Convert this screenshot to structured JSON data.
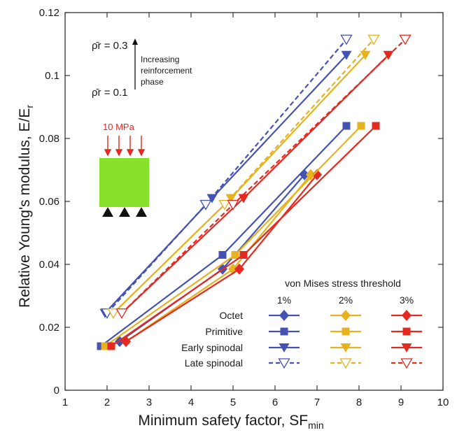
{
  "chart_data": {
    "type": "line",
    "xlabel": "Minimum safety factor, SF",
    "xlabel_sub": "min",
    "ylabel": "Relative Young's modulus, E/E",
    "ylabel_sub": "r",
    "xlim": [
      1,
      10
    ],
    "ylim": [
      0,
      0.12
    ],
    "xticks": [
      1,
      2,
      3,
      4,
      5,
      6,
      7,
      8,
      9,
      10
    ],
    "yticks": [
      0,
      0.02,
      0.04,
      0.06,
      0.08,
      0.1,
      0.12
    ],
    "grid": false,
    "legend": {
      "title": "von Mises stress threshold",
      "columns": [
        "1%",
        "2%",
        "3%"
      ],
      "rows": [
        "Octet",
        "Primitive",
        "Early spinodal",
        "Late spinodal"
      ],
      "placement": "bottom-right"
    },
    "colors": {
      "1%": "#4452b4",
      "2%": "#e6b21e",
      "3%": "#e42a20"
    },
    "annotations": {
      "rho_top": "ρ̄r = 0.3",
      "rho_bottom": "ρ̄r = 0.1",
      "arrow_label_line1": "Increasing",
      "arrow_label_line2": "reinforcement",
      "arrow_label_line3": "phase",
      "load_label": "10 MPa"
    },
    "series": [
      {
        "topology": "Octet",
        "threshold": "1%",
        "marker": "diamond",
        "dashed": false,
        "x": [
          2.3,
          4.75,
          6.7
        ],
        "y": [
          0.0155,
          0.0385,
          0.0685
        ]
      },
      {
        "topology": "Octet",
        "threshold": "2%",
        "marker": "diamond",
        "dashed": false,
        "x": [
          2.45,
          5.0,
          6.85
        ],
        "y": [
          0.0155,
          0.0385,
          0.0685
        ]
      },
      {
        "topology": "Octet",
        "threshold": "3%",
        "marker": "diamond",
        "dashed": false,
        "x": [
          2.45,
          5.15,
          7.0
        ],
        "y": [
          0.0155,
          0.0385,
          0.0685
        ]
      },
      {
        "topology": "Primitive",
        "threshold": "1%",
        "marker": "square",
        "dashed": false,
        "x": [
          1.85,
          4.75,
          7.7
        ],
        "y": [
          0.014,
          0.043,
          0.084
        ]
      },
      {
        "topology": "Primitive",
        "threshold": "2%",
        "marker": "square",
        "dashed": false,
        "x": [
          1.95,
          5.05,
          8.05
        ],
        "y": [
          0.014,
          0.043,
          0.084
        ]
      },
      {
        "topology": "Primitive",
        "threshold": "3%",
        "marker": "square",
        "dashed": false,
        "x": [
          2.1,
          5.25,
          8.4
        ],
        "y": [
          0.014,
          0.043,
          0.084
        ]
      },
      {
        "topology": "Early spinodal",
        "threshold": "1%",
        "marker": "triangle-down",
        "dashed": false,
        "x": [
          1.95,
          4.5,
          7.7
        ],
        "y": [
          0.0245,
          0.061,
          0.1065
        ]
      },
      {
        "topology": "Early spinodal",
        "threshold": "2%",
        "marker": "triangle-down",
        "dashed": false,
        "x": [
          2.15,
          4.95,
          8.15
        ],
        "y": [
          0.0245,
          0.061,
          0.1065
        ]
      },
      {
        "topology": "Early spinodal",
        "threshold": "3%",
        "marker": "triangle-down",
        "dashed": false,
        "x": [
          2.35,
          5.25,
          8.7
        ],
        "y": [
          0.0245,
          0.061,
          0.1065
        ]
      },
      {
        "topology": "Late spinodal",
        "threshold": "1%",
        "marker": "triangle-down-open",
        "dashed": true,
        "x": [
          2.0,
          4.35,
          7.7
        ],
        "y": [
          0.0245,
          0.059,
          0.1115
        ]
      },
      {
        "topology": "Late spinodal",
        "threshold": "2%",
        "marker": "triangle-down-open",
        "dashed": true,
        "x": [
          2.15,
          4.8,
          8.35
        ],
        "y": [
          0.0245,
          0.059,
          0.1115
        ]
      },
      {
        "topology": "Late spinodal",
        "threshold": "3%",
        "marker": "triangle-down-open",
        "dashed": true,
        "x": [
          2.35,
          5.0,
          9.1
        ],
        "y": [
          0.0245,
          0.059,
          0.1115
        ]
      }
    ]
  }
}
